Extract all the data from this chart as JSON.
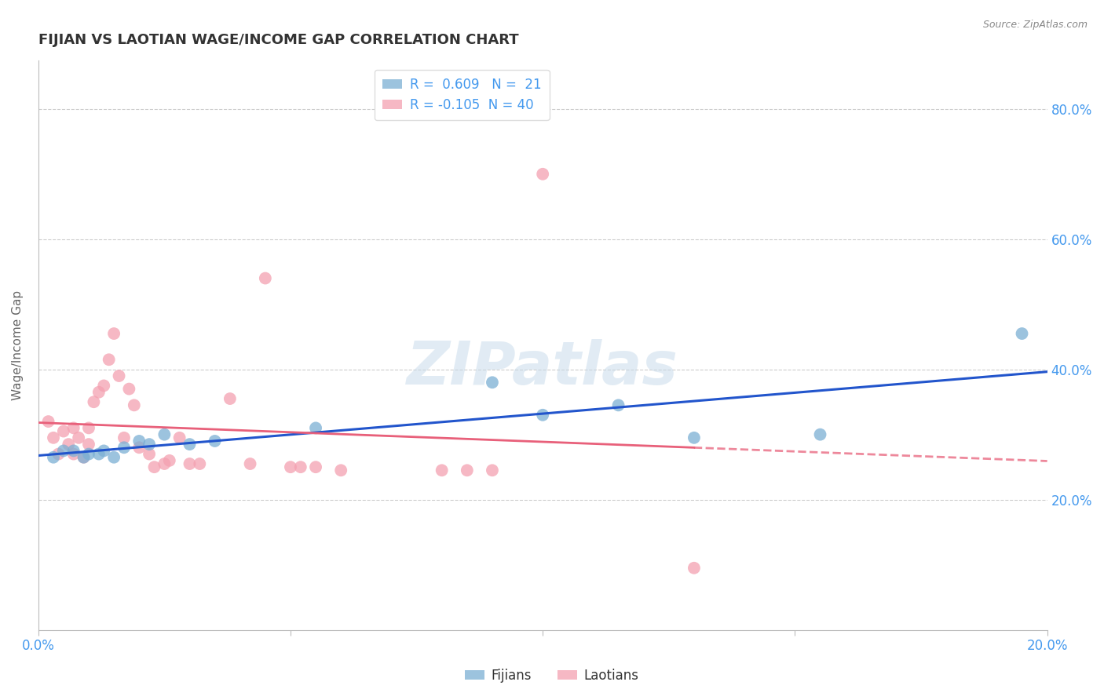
{
  "title": "FIJIAN VS LAOTIAN WAGE/INCOME GAP CORRELATION CHART",
  "source": "Source: ZipAtlas.com",
  "ylabel": "Wage/Income Gap",
  "xlim": [
    0.0,
    0.2
  ],
  "ylim": [
    0.0,
    0.875
  ],
  "fijian_color": "#7bafd4",
  "laotian_color": "#f4a0b0",
  "fijian_line_color": "#2255cc",
  "laotian_line_color": "#e8607a",
  "R_fijian": 0.609,
  "N_fijian": 21,
  "R_laotian": -0.105,
  "N_laotian": 40,
  "fijian_points": [
    [
      0.003,
      0.265
    ],
    [
      0.005,
      0.275
    ],
    [
      0.007,
      0.275
    ],
    [
      0.009,
      0.265
    ],
    [
      0.01,
      0.27
    ],
    [
      0.012,
      0.27
    ],
    [
      0.013,
      0.275
    ],
    [
      0.015,
      0.265
    ],
    [
      0.017,
      0.28
    ],
    [
      0.02,
      0.29
    ],
    [
      0.022,
      0.285
    ],
    [
      0.025,
      0.3
    ],
    [
      0.03,
      0.285
    ],
    [
      0.035,
      0.29
    ],
    [
      0.055,
      0.31
    ],
    [
      0.09,
      0.38
    ],
    [
      0.1,
      0.33
    ],
    [
      0.115,
      0.345
    ],
    [
      0.13,
      0.295
    ],
    [
      0.155,
      0.3
    ],
    [
      0.195,
      0.455
    ]
  ],
  "laotian_points": [
    [
      0.002,
      0.32
    ],
    [
      0.003,
      0.295
    ],
    [
      0.004,
      0.27
    ],
    [
      0.005,
      0.305
    ],
    [
      0.006,
      0.285
    ],
    [
      0.007,
      0.27
    ],
    [
      0.007,
      0.31
    ],
    [
      0.008,
      0.295
    ],
    [
      0.009,
      0.265
    ],
    [
      0.01,
      0.31
    ],
    [
      0.01,
      0.285
    ],
    [
      0.011,
      0.35
    ],
    [
      0.012,
      0.365
    ],
    [
      0.013,
      0.375
    ],
    [
      0.014,
      0.415
    ],
    [
      0.015,
      0.455
    ],
    [
      0.016,
      0.39
    ],
    [
      0.017,
      0.295
    ],
    [
      0.018,
      0.37
    ],
    [
      0.019,
      0.345
    ],
    [
      0.02,
      0.28
    ],
    [
      0.022,
      0.27
    ],
    [
      0.023,
      0.25
    ],
    [
      0.025,
      0.255
    ],
    [
      0.026,
      0.26
    ],
    [
      0.028,
      0.295
    ],
    [
      0.03,
      0.255
    ],
    [
      0.032,
      0.255
    ],
    [
      0.038,
      0.355
    ],
    [
      0.042,
      0.255
    ],
    [
      0.045,
      0.54
    ],
    [
      0.05,
      0.25
    ],
    [
      0.052,
      0.25
    ],
    [
      0.055,
      0.25
    ],
    [
      0.06,
      0.245
    ],
    [
      0.08,
      0.245
    ],
    [
      0.085,
      0.245
    ],
    [
      0.09,
      0.245
    ],
    [
      0.1,
      0.7
    ],
    [
      0.13,
      0.095
    ]
  ],
  "watermark": "ZIPatlas",
  "background_color": "#ffffff",
  "grid_color": "#cccccc"
}
